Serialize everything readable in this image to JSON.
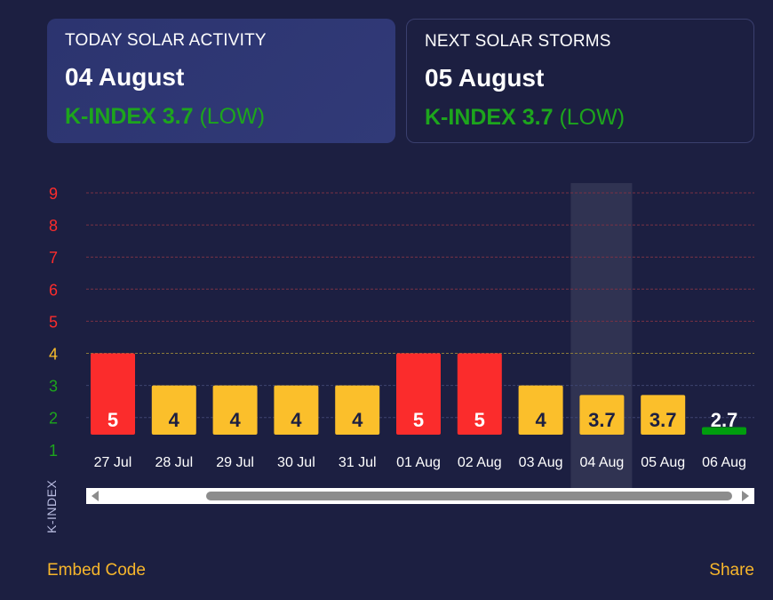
{
  "today": {
    "label": "TODAY SOLAR ACTIVITY",
    "date": "04 August",
    "kindex": "K-INDEX 3.7",
    "level": "(LOW)"
  },
  "next": {
    "label": "NEXT SOLAR STORMS",
    "date": "05 August",
    "kindex": "K-INDEX 3.7",
    "level": "(LOW)"
  },
  "footer": {
    "embed": "Embed Code",
    "share": "Share"
  },
  "colors": {
    "high": "#fb2c2c",
    "medium": "#fbbf2b",
    "low": "#009d0e",
    "background": "#1c1f41"
  },
  "chart_data": {
    "type": "bar",
    "ylabel": "K-INDEX",
    "ylim": [
      1,
      9
    ],
    "yticks": [
      1,
      2,
      3,
      4,
      5,
      6,
      7,
      8,
      9
    ],
    "grid": true,
    "categories": [
      "27 Jul",
      "28 Jul",
      "29 Jul",
      "30 Jul",
      "31 Jul",
      "01 Aug",
      "02 Aug",
      "03 Aug",
      "04 Aug",
      "05 Aug",
      "06 Aug"
    ],
    "values": [
      5,
      4,
      4,
      4,
      4,
      5,
      5,
      4,
      3.7,
      3.7,
      2.7
    ],
    "labels": [
      "5",
      "4",
      "4",
      "4",
      "4",
      "5",
      "5",
      "4",
      "3.7",
      "3.7",
      "2.7"
    ],
    "bar_colors": [
      "#fb2c2c",
      "#fbbf2b",
      "#fbbf2b",
      "#fbbf2b",
      "#fbbf2b",
      "#fb2c2c",
      "#fb2c2c",
      "#fbbf2b",
      "#fbbf2b",
      "#fbbf2b",
      "#009d0e"
    ],
    "highlighted": "04 Aug"
  }
}
